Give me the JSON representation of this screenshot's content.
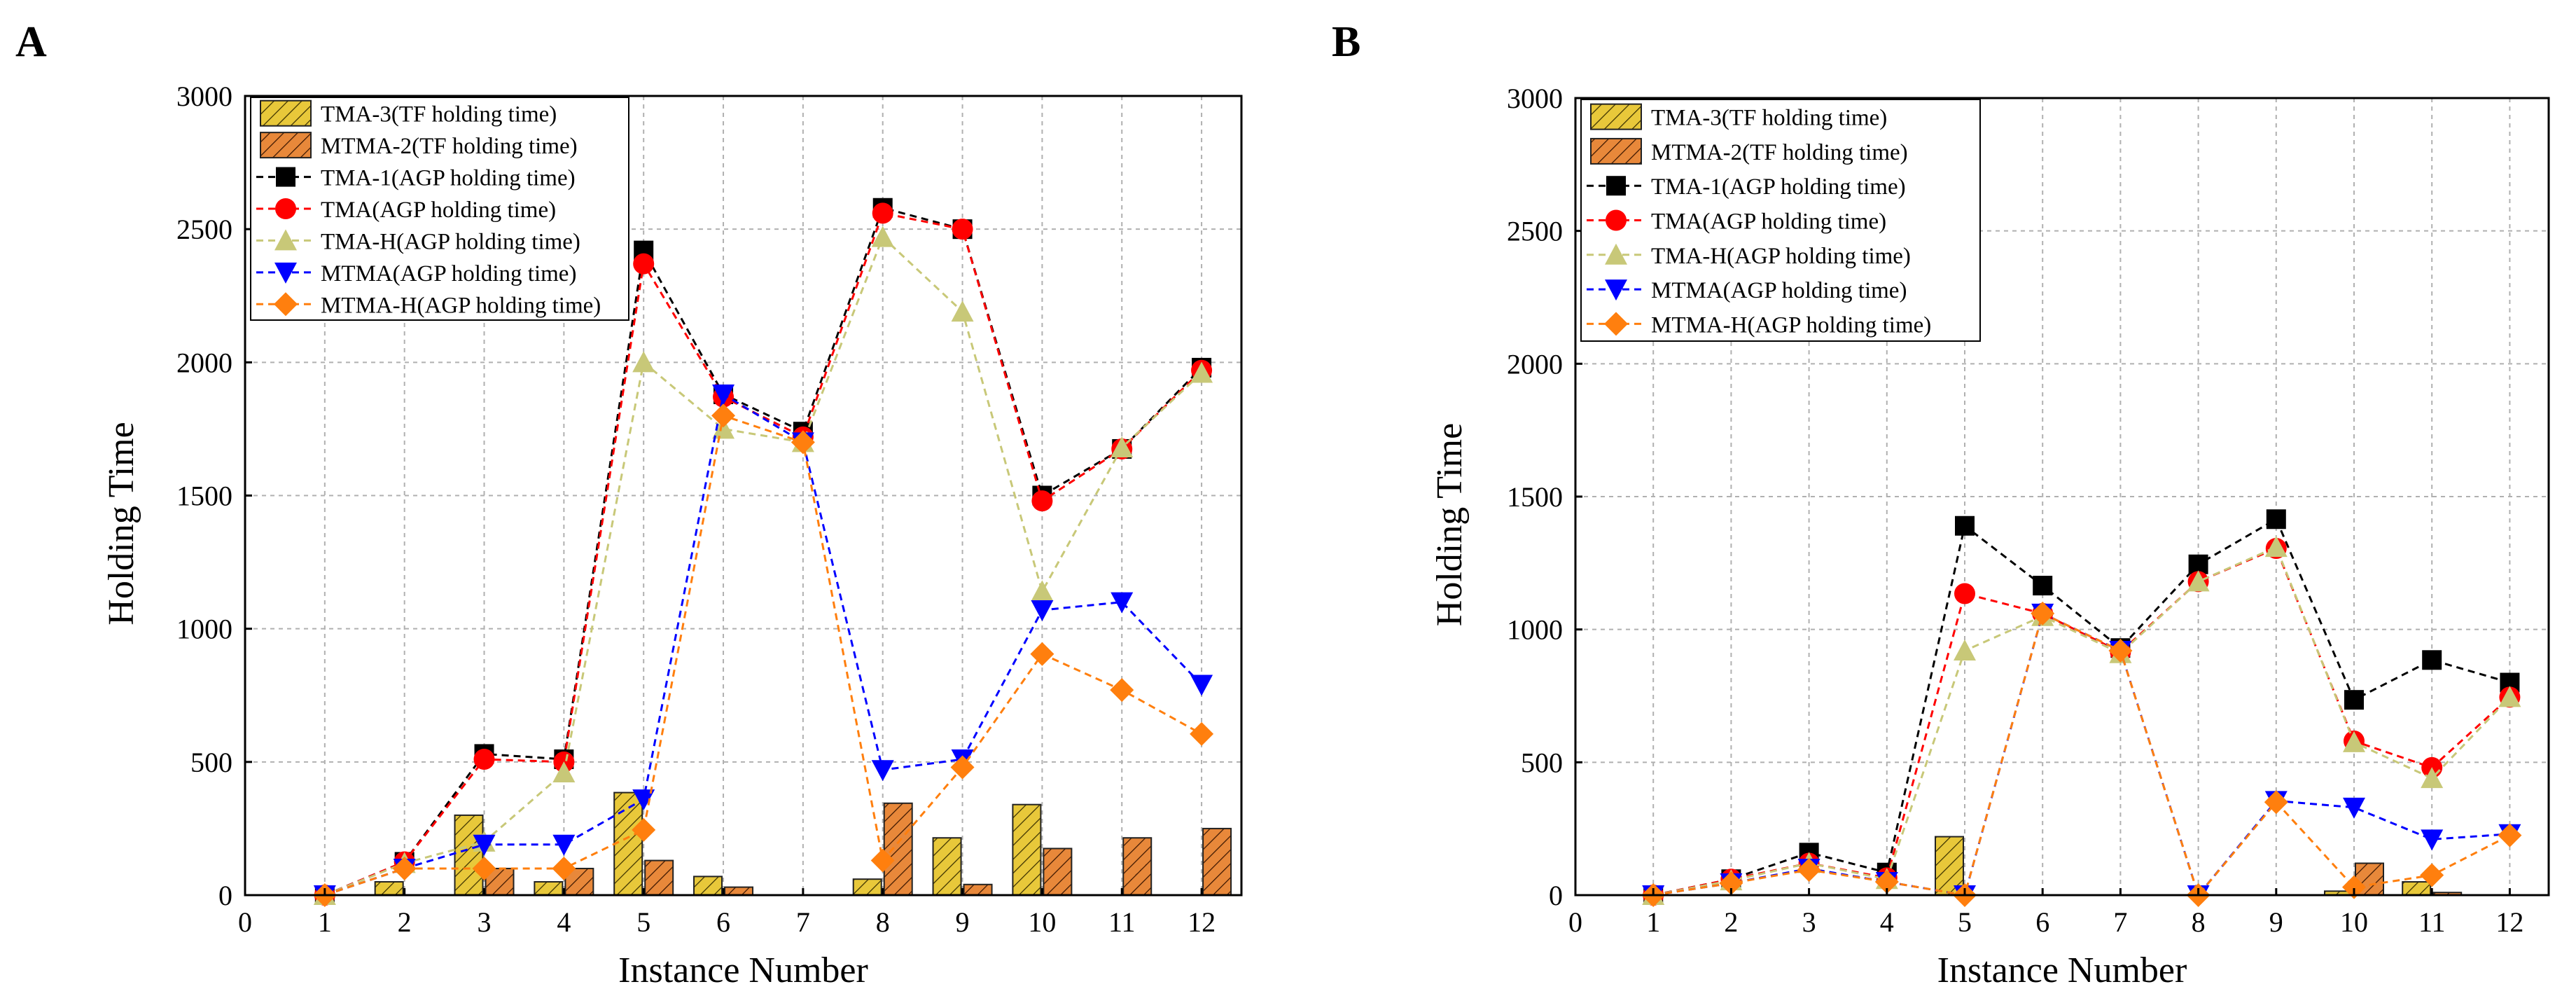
{
  "colors": {
    "tma3_bar": "#e8c83a",
    "mtma2_bar": "#e8883a",
    "tma1": "#000000",
    "tma": "#ff0000",
    "tmah": "#c8c878",
    "mtma": "#0000ff",
    "mtmah": "#ff7f0e"
  },
  "chart_data": [
    {
      "panel_label": "A",
      "type": "bar+line",
      "xlabel": "Instance Number",
      "ylabel": "Holding Time",
      "xlim": [
        0,
        12.5
      ],
      "ylim": [
        0,
        3000
      ],
      "xticks": [
        0,
        1,
        2,
        3,
        4,
        5,
        6,
        7,
        8,
        9,
        10,
        11,
        12
      ],
      "yticks": [
        0,
        500,
        1000,
        1500,
        2000,
        2500,
        3000
      ],
      "grid": true,
      "legend_position": "top-left",
      "x": [
        1,
        2,
        3,
        4,
        5,
        6,
        7,
        8,
        9,
        10,
        11,
        12
      ],
      "bars": [
        {
          "name": "TMA-3(TF holding time)",
          "values": [
            0,
            50,
            300,
            50,
            385,
            70,
            0,
            60,
            215,
            340,
            0,
            0
          ]
        },
        {
          "name": "MTMA-2(TF holding time)",
          "values": [
            0,
            0,
            100,
            100,
            130,
            30,
            0,
            345,
            40,
            175,
            215,
            250
          ]
        }
      ],
      "series": [
        {
          "name": "TMA-1(AGP holding time)",
          "values": [
            0,
            125,
            530,
            510,
            2420,
            1880,
            1740,
            2580,
            2500,
            1500,
            1675,
            1980
          ]
        },
        {
          "name": "TMA(AGP holding time)",
          "values": [
            0,
            125,
            510,
            500,
            2370,
            1870,
            1720,
            2560,
            2500,
            1480,
            1675,
            1970
          ]
        },
        {
          "name": "TMA-H(AGP holding time)",
          "values": [
            0,
            120,
            200,
            460,
            2000,
            1750,
            1700,
            2470,
            2190,
            1140,
            1680,
            1960
          ]
        },
        {
          "name": "MTMA(AGP holding time)",
          "values": [
            0,
            100,
            190,
            190,
            360,
            1880,
            1700,
            470,
            510,
            1070,
            1100,
            790
          ]
        },
        {
          "name": "MTMA-H(AGP holding time)",
          "values": [
            0,
            100,
            100,
            100,
            245,
            1800,
            1700,
            130,
            480,
            905,
            770,
            605
          ]
        }
      ]
    },
    {
      "panel_label": "B",
      "type": "bar+line",
      "xlabel": "Instance Number",
      "ylabel": "Holding Time",
      "xlim": [
        0,
        12.5
      ],
      "ylim": [
        0,
        3000
      ],
      "xticks": [
        0,
        1,
        2,
        3,
        4,
        5,
        6,
        7,
        8,
        9,
        10,
        11,
        12
      ],
      "yticks": [
        0,
        500,
        1000,
        1500,
        2000,
        2500,
        3000
      ],
      "grid": true,
      "legend_position": "top-left",
      "x": [
        1,
        2,
        3,
        4,
        5,
        6,
        7,
        8,
        9,
        10,
        11,
        12
      ],
      "bars": [
        {
          "name": "TMA-3(TF holding time)",
          "values": [
            0,
            0,
            0,
            0,
            220,
            0,
            0,
            0,
            0,
            15,
            50,
            0
          ]
        },
        {
          "name": "MTMA-2(TF holding time)",
          "values": [
            0,
            0,
            0,
            0,
            0,
            0,
            0,
            0,
            0,
            120,
            10,
            0
          ]
        }
      ],
      "series": [
        {
          "name": "TMA-1(AGP holding time)",
          "values": [
            0,
            60,
            160,
            85,
            1390,
            1165,
            930,
            1245,
            1415,
            735,
            885,
            800
          ]
        },
        {
          "name": "TMA(AGP holding time)",
          "values": [
            0,
            60,
            120,
            65,
            1135,
            1060,
            915,
            1180,
            1305,
            580,
            480,
            745
          ]
        },
        {
          "name": "TMA-H(AGP holding time)",
          "values": [
            0,
            55,
            120,
            60,
            920,
            1050,
            910,
            1180,
            1310,
            575,
            440,
            745
          ]
        },
        {
          "name": "MTMA(AGP holding time)",
          "values": [
            0,
            45,
            100,
            50,
            0,
            1060,
            920,
            0,
            355,
            330,
            210,
            230
          ]
        },
        {
          "name": "MTMA-H(AGP holding time)",
          "values": [
            0,
            45,
            95,
            50,
            0,
            1060,
            920,
            0,
            350,
            30,
            75,
            225
          ]
        }
      ]
    }
  ]
}
